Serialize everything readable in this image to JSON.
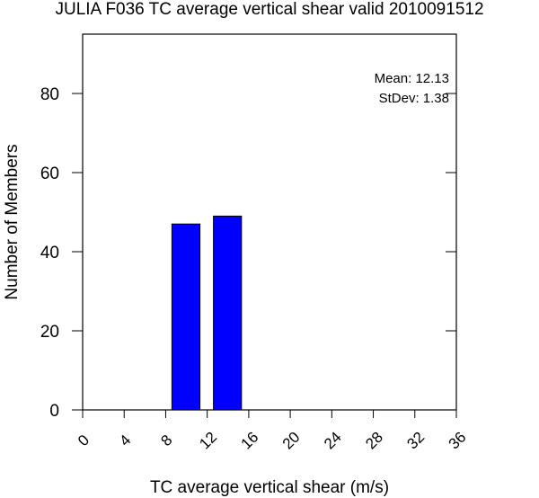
{
  "chart_data": {
    "type": "bar",
    "title": "JULIA F036 TC average vertical shear valid 2010091512",
    "xlabel": "TC average vertical shear (m/s)",
    "ylabel": "Number of Members",
    "xlim": [
      0,
      36
    ],
    "ylim": [
      0,
      95
    ],
    "xticks": [
      "0",
      "4",
      "8",
      "12",
      "16",
      "20",
      "24",
      "28",
      "32",
      "36"
    ],
    "yticks": [
      "0",
      "20",
      "40",
      "60",
      "80"
    ],
    "bars": [
      {
        "x0": 8.6,
        "x1": 11.3,
        "value": 47
      },
      {
        "x0": 12.6,
        "x1": 15.3,
        "value": 49
      }
    ],
    "bar_color": "#0000ff",
    "grid": false,
    "legend": "none",
    "stats": {
      "mean_label": "Mean: 12.13",
      "stdev_label": "StDev: 1.38"
    }
  }
}
